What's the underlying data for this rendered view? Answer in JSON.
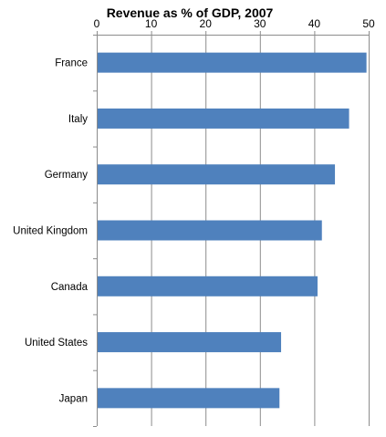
{
  "chart_data": {
    "type": "bar",
    "orientation": "horizontal",
    "title": "Revenue as % of GDP, 2007",
    "xlabel": "",
    "ylabel": "",
    "xlim": [
      0,
      50
    ],
    "x_ticks": [
      0,
      10,
      20,
      30,
      40,
      50
    ],
    "x_axis_position": "top",
    "grid": true,
    "legend": "none",
    "bar_color": "#4f81bd",
    "categories": [
      "France",
      "Italy",
      "Germany",
      "United Kingdom",
      "Canada",
      "United States",
      "Japan"
    ],
    "values": [
      49.6,
      46.4,
      43.8,
      41.4,
      40.6,
      33.9,
      33.6
    ]
  }
}
